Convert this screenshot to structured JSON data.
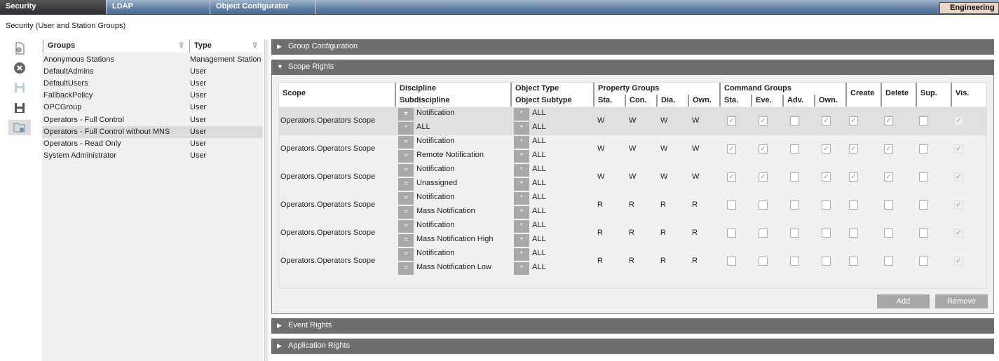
{
  "tabs": [
    {
      "label": "Security",
      "active": true
    },
    {
      "label": "LDAP"
    },
    {
      "label": "Object Configurator"
    }
  ],
  "mode_button": "Engineering",
  "page_title": "Security (User and Station Groups)",
  "toolbar": [
    {
      "icon": "new-document-icon"
    },
    {
      "icon": "delete-icon"
    },
    {
      "icon": "save-icon",
      "disabled": true
    },
    {
      "icon": "save-as-icon"
    },
    {
      "icon": "folder-settings-icon",
      "active": true
    }
  ],
  "groups": {
    "columns": [
      "Groups",
      "Type"
    ],
    "selected_index": 6,
    "rows": [
      [
        "Anonymous Stations",
        "Management Station"
      ],
      [
        "DefaultAdmins",
        "User"
      ],
      [
        "DefaultUsers",
        "User"
      ],
      [
        "FallbackPolicy",
        "User"
      ],
      [
        "OPCGroup",
        "User"
      ],
      [
        "Operators - Full Control",
        "User"
      ],
      [
        "Operators - Full Control without MNS",
        "User"
      ],
      [
        "Operators - Read Only",
        "User"
      ],
      [
        "System Administrator",
        "User"
      ]
    ]
  },
  "sections": {
    "group_configuration": "Group Configuration",
    "scope_rights": "Scope Rights",
    "event_rights": "Event Rights",
    "application_rights": "Application Rights"
  },
  "scope_table": {
    "headers": {
      "scope": "Scope",
      "discipline": "Discipline",
      "subdiscipline": "Subdiscipline",
      "object_type": "Object Type",
      "object_subtype": "Object Subtype",
      "property_groups": "Property Groups",
      "command_groups": "Command Groups",
      "prop_cols": [
        "Sta.",
        "Con.",
        "Dia.",
        "Own."
      ],
      "cmd_cols": [
        "Sta.",
        "Eve.",
        "Adv.",
        "Own."
      ],
      "create": "Create",
      "delete": "Delete",
      "sup": "Sup.",
      "vis": "Vis."
    },
    "rows": [
      {
        "scope": "Operators.Operators Scope",
        "disc_op": "≠",
        "discipline": "Notification",
        "sub_op": "*",
        "subdiscipline": "ALL",
        "type_op": "*",
        "object_type": "ALL",
        "subtype_op": "*",
        "object_subtype": "ALL",
        "prop": [
          "W",
          "W",
          "W",
          "W"
        ],
        "cmd": [
          true,
          true,
          false,
          true
        ],
        "create": true,
        "delete": true,
        "sup": false,
        "vis": true
      },
      {
        "scope": "Operators.Operators Scope",
        "disc_op": "=",
        "discipline": "Notification",
        "sub_op": "=",
        "subdiscipline": "Remote Notification",
        "type_op": "*",
        "object_type": "ALL",
        "subtype_op": "*",
        "object_subtype": "ALL",
        "prop": [
          "W",
          "W",
          "W",
          "W"
        ],
        "cmd": [
          true,
          true,
          false,
          true
        ],
        "create": true,
        "delete": true,
        "sup": false,
        "vis": true
      },
      {
        "scope": "Operators.Operators Scope",
        "disc_op": "=",
        "discipline": "Notification",
        "sub_op": "=",
        "subdiscipline": "Unassigned",
        "type_op": "*",
        "object_type": "ALL",
        "subtype_op": "*",
        "object_subtype": "ALL",
        "prop": [
          "W",
          "W",
          "W",
          "W"
        ],
        "cmd": [
          true,
          true,
          false,
          true
        ],
        "create": true,
        "delete": true,
        "sup": false,
        "vis": true
      },
      {
        "scope": "Operators.Operators Scope",
        "disc_op": "=",
        "discipline": "Notification",
        "sub_op": "=",
        "subdiscipline": "Mass Notification",
        "type_op": "*",
        "object_type": "ALL",
        "subtype_op": "*",
        "object_subtype": "ALL",
        "prop": [
          "R",
          "R",
          "R",
          "R"
        ],
        "cmd": [
          false,
          false,
          false,
          false
        ],
        "create": false,
        "delete": false,
        "sup": false,
        "vis": true
      },
      {
        "scope": "Operators.Operators Scope",
        "disc_op": "=",
        "discipline": "Notification",
        "sub_op": "=",
        "subdiscipline": "Mass Notification High",
        "type_op": "*",
        "object_type": "ALL",
        "subtype_op": "*",
        "object_subtype": "ALL",
        "prop": [
          "R",
          "R",
          "R",
          "R"
        ],
        "cmd": [
          false,
          false,
          false,
          false
        ],
        "create": false,
        "delete": false,
        "sup": false,
        "vis": true
      },
      {
        "scope": "Operators.Operators Scope",
        "disc_op": "=",
        "discipline": "Notification",
        "sub_op": "=",
        "subdiscipline": "Mass Notification Low",
        "type_op": "*",
        "object_type": "ALL",
        "subtype_op": "*",
        "object_subtype": "ALL",
        "prop": [
          "R",
          "R",
          "R",
          "R"
        ],
        "cmd": [
          false,
          false,
          false,
          false
        ],
        "create": false,
        "delete": false,
        "sup": false,
        "vis": true
      }
    ]
  },
  "buttons": {
    "add": "Add",
    "remove": "Remove"
  }
}
